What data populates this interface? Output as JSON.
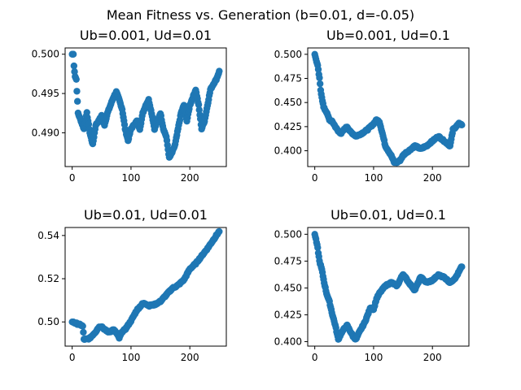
{
  "figure": {
    "suptitle": "Mean Fitness vs. Generation (b=0.01, d=-0.05)",
    "marker_color": "#1f77b4"
  },
  "chart_data": [
    {
      "type": "scatter",
      "title": "Ub=0.001, Ud=0.01",
      "xlabel": "",
      "ylabel": "",
      "xlim": [
        -12,
        262
      ],
      "ylim": [
        0.4857,
        0.5008
      ],
      "xticks": [
        0,
        100,
        200
      ],
      "xtick_labels": [
        "0",
        "100",
        "200"
      ],
      "yticks": [
        0.49,
        0.495,
        0.5
      ],
      "ytick_labels": [
        "0.490",
        "0.495",
        "0.500"
      ],
      "keypoints": {
        "x": [
          0,
          2,
          3,
          5,
          7,
          10,
          15,
          20,
          25,
          30,
          35,
          40,
          45,
          50,
          55,
          60,
          65,
          70,
          75,
          80,
          85,
          90,
          95,
          100,
          105,
          110,
          115,
          120,
          125,
          130,
          135,
          140,
          145,
          150,
          155,
          160,
          165,
          170,
          175,
          180,
          185,
          190,
          195,
          200,
          205,
          210,
          215,
          220,
          225,
          230,
          235,
          240,
          245,
          250
        ],
        "y": [
          0.5,
          0.5,
          0.4985,
          0.4972,
          0.4968,
          0.4925,
          0.4915,
          0.4905,
          0.4925,
          0.49,
          0.4885,
          0.491,
          0.4915,
          0.4922,
          0.491,
          0.4925,
          0.4935,
          0.4945,
          0.4952,
          0.4942,
          0.493,
          0.4905,
          0.489,
          0.4905,
          0.491,
          0.4915,
          0.4905,
          0.4925,
          0.4935,
          0.4942,
          0.4925,
          0.4905,
          0.4915,
          0.4925,
          0.4905,
          0.4895,
          0.4868,
          0.4875,
          0.4885,
          0.4905,
          0.4925,
          0.4935,
          0.4915,
          0.4935,
          0.4945,
          0.4955,
          0.4935,
          0.4905,
          0.4915,
          0.4935,
          0.4955,
          0.4962,
          0.4968,
          0.4978
        ]
      }
    },
    {
      "type": "scatter",
      "title": "Ub=0.001, Ud=0.1",
      "xlabel": "",
      "ylabel": "",
      "xlim": [
        -12,
        262
      ],
      "ylim": [
        0.3836,
        0.5066
      ],
      "xticks": [
        0,
        100,
        200
      ],
      "xtick_labels": [
        "0",
        "100",
        "200"
      ],
      "yticks": [
        0.4,
        0.425,
        0.45,
        0.475,
        0.5
      ],
      "ytick_labels": [
        "0.400",
        "0.425",
        "0.450",
        "0.475",
        "0.500"
      ],
      "keypoints": {
        "x": [
          0,
          2,
          5,
          8,
          10,
          15,
          20,
          25,
          30,
          35,
          40,
          45,
          50,
          55,
          60,
          70,
          80,
          90,
          100,
          105,
          110,
          115,
          120,
          125,
          130,
          135,
          140,
          145,
          150,
          155,
          160,
          170,
          180,
          190,
          200,
          210,
          220,
          230,
          235,
          240,
          245,
          250
        ],
        "y": [
          0.5,
          0.495,
          0.488,
          0.475,
          0.463,
          0.445,
          0.44,
          0.432,
          0.43,
          0.425,
          0.42,
          0.418,
          0.422,
          0.425,
          0.42,
          0.415,
          0.418,
          0.422,
          0.428,
          0.432,
          0.43,
          0.418,
          0.405,
          0.4,
          0.395,
          0.388,
          0.388,
          0.39,
          0.395,
          0.398,
          0.4,
          0.405,
          0.402,
          0.405,
          0.41,
          0.415,
          0.41,
          0.405,
          0.422,
          0.425,
          0.428,
          0.427
        ]
      }
    },
    {
      "type": "scatter",
      "title": "Ub=0.01, Ud=0.01",
      "xlabel": "",
      "ylabel": "",
      "xlim": [
        -12,
        262
      ],
      "ylim": [
        0.4888,
        0.5437
      ],
      "xticks": [
        0,
        100,
        200
      ],
      "xtick_labels": [
        "0",
        "100",
        "200"
      ],
      "yticks": [
        0.5,
        0.52,
        0.54
      ],
      "ytick_labels": [
        "0.50",
        "0.52",
        "0.54"
      ],
      "keypoints": {
        "x": [
          0,
          5,
          10,
          15,
          18,
          20,
          25,
          30,
          35,
          40,
          45,
          50,
          55,
          60,
          65,
          70,
          75,
          80,
          85,
          90,
          95,
          100,
          105,
          110,
          115,
          120,
          125,
          130,
          140,
          150,
          160,
          170,
          180,
          190,
          200,
          210,
          220,
          230,
          240,
          245,
          250
        ],
        "y": [
          0.5,
          0.4995,
          0.499,
          0.4985,
          0.498,
          0.492,
          0.492,
          0.4925,
          0.494,
          0.4955,
          0.4975,
          0.498,
          0.4965,
          0.4955,
          0.4955,
          0.4965,
          0.495,
          0.4925,
          0.4955,
          0.4965,
          0.4985,
          0.5005,
          0.503,
          0.5055,
          0.507,
          0.5085,
          0.5085,
          0.5075,
          0.508,
          0.5095,
          0.5125,
          0.5155,
          0.517,
          0.5195,
          0.5245,
          0.527,
          0.5305,
          0.534,
          0.538,
          0.54,
          0.542
        ]
      }
    },
    {
      "type": "scatter",
      "title": "Ub=0.01, Ud=0.1",
      "xlabel": "",
      "ylabel": "",
      "xlim": [
        -12,
        262
      ],
      "ylim": [
        0.3958,
        0.5063
      ],
      "xticks": [
        0,
        100,
        200
      ],
      "xtick_labels": [
        "0",
        "100",
        "200"
      ],
      "yticks": [
        0.4,
        0.425,
        0.45,
        0.475,
        0.5
      ],
      "ytick_labels": [
        "0.400",
        "0.425",
        "0.450",
        "0.475",
        "0.500"
      ],
      "keypoints": {
        "x": [
          0,
          2,
          5,
          8,
          12,
          16,
          20,
          25,
          30,
          35,
          40,
          45,
          50,
          55,
          60,
          65,
          70,
          75,
          80,
          85,
          90,
          95,
          100,
          105,
          110,
          120,
          130,
          140,
          150,
          160,
          170,
          180,
          190,
          200,
          210,
          220,
          230,
          240,
          250
        ],
        "y": [
          0.5,
          0.495,
          0.487,
          0.475,
          0.467,
          0.455,
          0.445,
          0.437,
          0.425,
          0.415,
          0.402,
          0.408,
          0.412,
          0.415,
          0.41,
          0.405,
          0.402,
          0.408,
          0.413,
          0.418,
          0.425,
          0.432,
          0.43,
          0.44,
          0.445,
          0.452,
          0.455,
          0.452,
          0.463,
          0.455,
          0.448,
          0.46,
          0.455,
          0.457,
          0.462,
          0.46,
          0.455,
          0.46,
          0.47
        ]
      }
    }
  ]
}
